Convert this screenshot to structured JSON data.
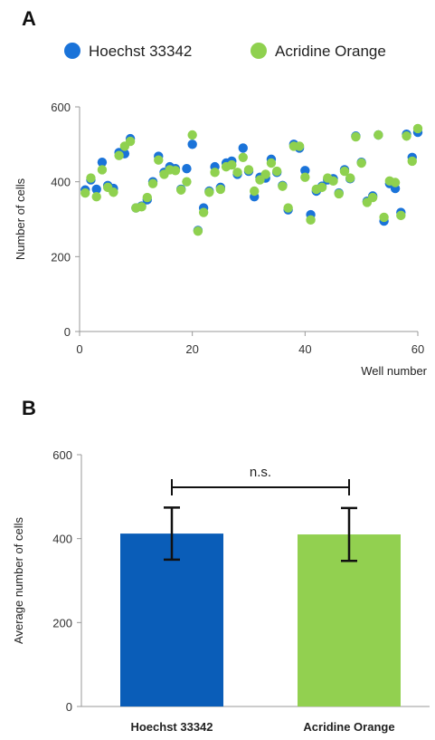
{
  "chart_data": [
    {
      "panel_label": "A",
      "type": "scatter",
      "xlabel": "Well number",
      "ylabel": "Number of cells",
      "xlim": [
        0,
        60
      ],
      "ylim": [
        0,
        600
      ],
      "x_ticks": [
        0,
        20,
        40,
        60
      ],
      "y_ticks": [
        0,
        200,
        400,
        600
      ],
      "legend_position": "top",
      "colors": {
        "hoechst": "#1a73d9",
        "acridine": "#8fd14f"
      },
      "series": [
        {
          "name": "Hoechst 33342",
          "x": [
            1,
            2,
            3,
            4,
            5,
            6,
            7,
            8,
            9,
            10,
            11,
            12,
            13,
            14,
            15,
            16,
            17,
            18,
            19,
            20,
            21,
            22,
            23,
            24,
            25,
            26,
            27,
            28,
            29,
            30,
            31,
            32,
            33,
            34,
            35,
            36,
            37,
            38,
            39,
            40,
            41,
            42,
            43,
            44,
            45,
            46,
            47,
            48,
            49,
            50,
            51,
            52,
            53,
            54,
            55,
            56,
            57,
            58,
            59,
            60
          ],
          "y": [
            378,
            405,
            380,
            452,
            390,
            382,
            478,
            475,
            515,
            330,
            335,
            352,
            400,
            468,
            425,
            440,
            435,
            380,
            435,
            500,
            270,
            330,
            375,
            440,
            385,
            450,
            455,
            420,
            490,
            428,
            360,
            412,
            410,
            460,
            425,
            390,
            325,
            500,
            490,
            430,
            312,
            375,
            388,
            405,
            408,
            370,
            432,
            408,
            522,
            452,
            348,
            362,
            525,
            295,
            395,
            382,
            318,
            527,
            465,
            532
          ]
        },
        {
          "name": "Acridine Orange",
          "x": [
            1,
            2,
            3,
            4,
            5,
            6,
            7,
            8,
            9,
            10,
            11,
            12,
            13,
            14,
            15,
            16,
            17,
            18,
            19,
            20,
            21,
            22,
            23,
            24,
            25,
            26,
            27,
            28,
            29,
            30,
            31,
            32,
            33,
            34,
            35,
            36,
            37,
            38,
            39,
            40,
            41,
            42,
            43,
            44,
            45,
            46,
            47,
            48,
            49,
            50,
            51,
            52,
            53,
            54,
            55,
            56,
            57,
            58,
            59,
            60
          ],
          "y": [
            370,
            410,
            360,
            432,
            385,
            372,
            470,
            495,
            508,
            330,
            333,
            358,
            395,
            458,
            420,
            432,
            430,
            378,
            400,
            525,
            268,
            318,
            372,
            425,
            380,
            440,
            445,
            425,
            465,
            432,
            375,
            405,
            420,
            450,
            428,
            388,
            330,
            495,
            495,
            412,
            298,
            380,
            385,
            410,
            402,
            368,
            428,
            410,
            520,
            450,
            345,
            358,
            525,
            305,
            402,
            398,
            310,
            522,
            455,
            542
          ]
        }
      ]
    },
    {
      "panel_label": "B",
      "type": "bar",
      "ylabel": "Average number of cells",
      "ylim": [
        0,
        600
      ],
      "y_ticks": [
        0,
        200,
        400,
        600
      ],
      "categories": [
        "Hoechst 33342",
        "Acridine Orange"
      ],
      "values": [
        412,
        410
      ],
      "error": [
        62,
        63
      ],
      "colors": [
        "#0a5db8",
        "#92d050"
      ],
      "significance": "n.s."
    }
  ]
}
